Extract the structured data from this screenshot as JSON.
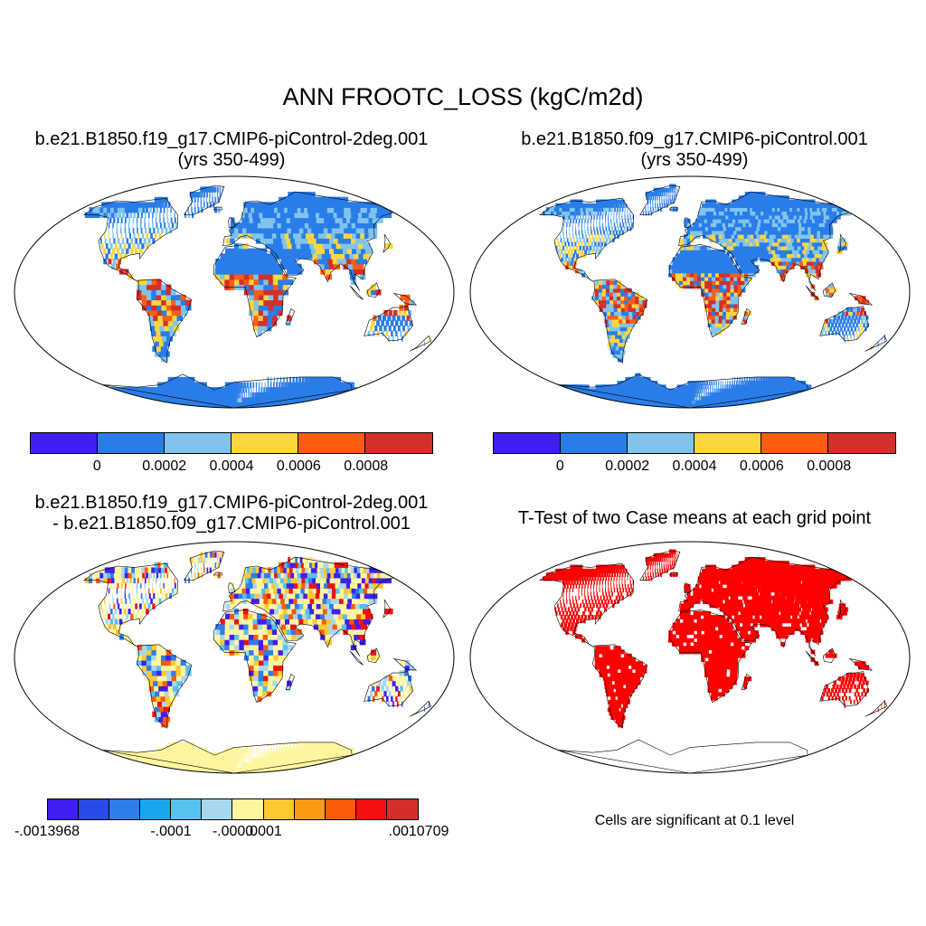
{
  "figure": {
    "title": "ANN FROOTC_LOSS (kgC/m2d)"
  },
  "panels": {
    "case1": {
      "title_line1": "b.e21.B1850.f19_g17.CMIP6-piControl-2deg.001",
      "title_line2": "(yrs 350-499)"
    },
    "case2": {
      "title_line1": "b.e21.B1850.f09_g17.CMIP6-piControl.001",
      "title_line2": "(yrs 350-499)"
    },
    "diff": {
      "title_line1": "b.e21.B1850.f19_g17.CMIP6-piControl-2deg.001",
      "title_line2": "- b.e21.B1850.f09_g17.CMIP6-piControl.001"
    },
    "ttest": {
      "title": "T-Test of two Case means at each grid point",
      "note": "Cells are significant at 0.1 level"
    }
  },
  "colorbars": {
    "case": {
      "colors": [
        "#3f1fef",
        "#2a7de8",
        "#80c4ee",
        "#fdd53c",
        "#fb5c12",
        "#d32f2b"
      ],
      "labels": [
        "0",
        "0.0002",
        "0.0004",
        "0.0006",
        "0.0008"
      ]
    },
    "diff": {
      "colors": [
        "#3f1fef",
        "#2a4ae8",
        "#2f7de8",
        "#18a6ef",
        "#55c2f0",
        "#a8d8ee",
        "#fef5a0",
        "#fdc92e",
        "#fc9a14",
        "#fb5a0a",
        "#f3100f",
        "#d52c2c"
      ],
      "labels": [
        "-.0013968",
        "-.0001",
        "-.0000",
        ".0001",
        ".0010709"
      ]
    }
  },
  "map_style": {
    "ocean": "#ffffff",
    "land_outline": "#000000",
    "significant_color": "#ff0000",
    "case_land_palette": [
      "#2a7de8",
      "#80c4ee",
      "#fdd53c",
      "#fb5c12",
      "#d32f2b"
    ],
    "diff_land_palette": [
      "#fef5a0",
      "#a8d8ee",
      "#fdc92e",
      "#55c2f0",
      "#fb5a0a",
      "#2f7de8",
      "#f3100f",
      "#3f1fef"
    ]
  }
}
